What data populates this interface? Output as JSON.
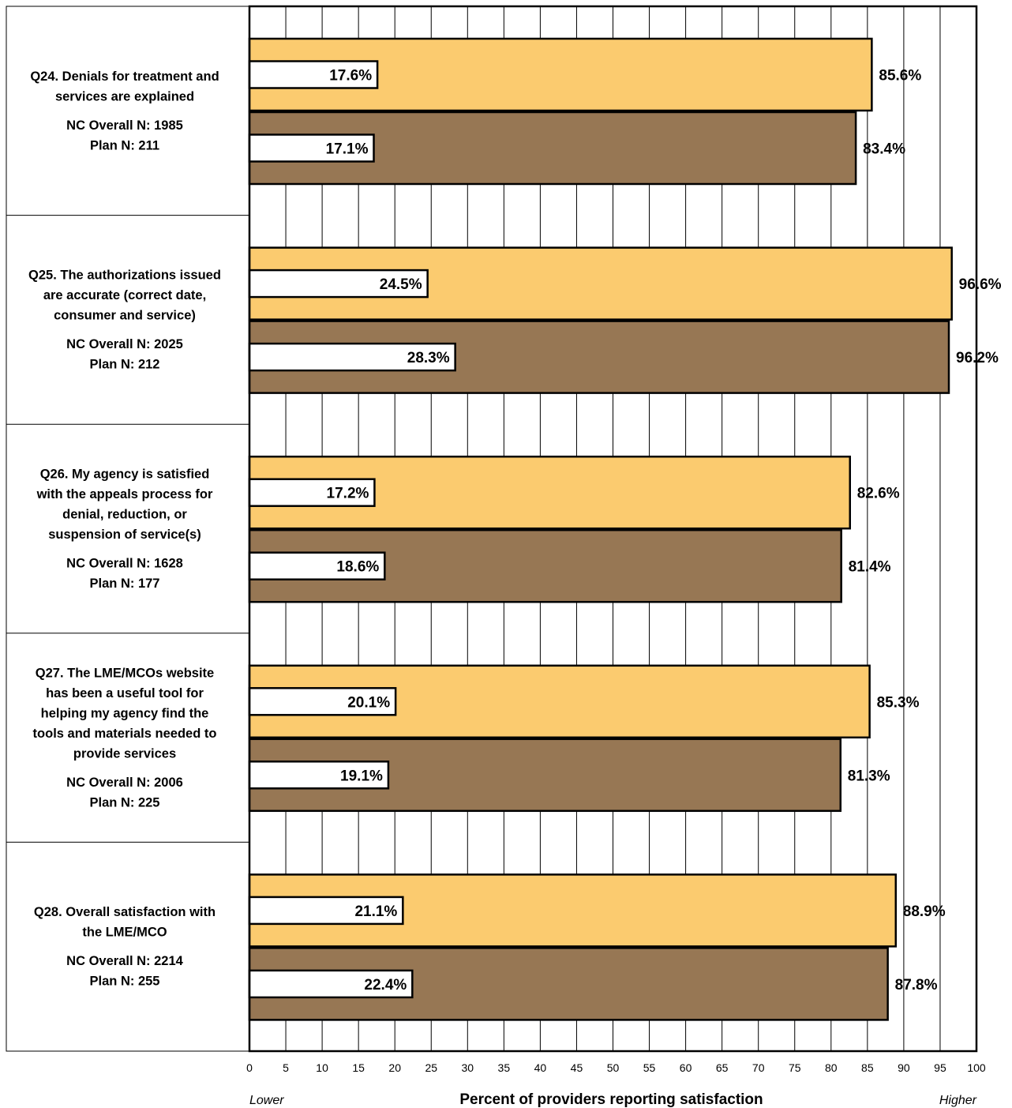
{
  "colors": {
    "plan": "#fbcb6f",
    "overall": "#977754",
    "inner": "#ffffff",
    "grid": "#000000"
  },
  "chart_data": {
    "type": "bar",
    "orientation": "horizontal",
    "xlabel": "Percent of providers reporting satisfaction",
    "x_low_label": "Lower",
    "x_high_label": "Higher",
    "xlim": [
      0,
      100
    ],
    "x_ticks": [
      "0",
      "5",
      "10",
      "15",
      "20",
      "25",
      "30",
      "35",
      "40",
      "45",
      "50",
      "55",
      "60",
      "65",
      "70",
      "75",
      "80",
      "85",
      "90",
      "95",
      "100"
    ],
    "grid": true,
    "categories": [
      {
        "lines": [
          "Q24. Denials for treatment and",
          "services are explained"
        ],
        "n_lines": [
          "NC Overall N: 1985",
          "Plan N: 211"
        ],
        "bars": [
          {
            "value": 85.6,
            "value_label": "85.6%",
            "inner": 17.6,
            "inner_label": "17.6%"
          },
          {
            "value": 83.4,
            "value_label": "83.4%",
            "inner": 17.1,
            "inner_label": "17.1%"
          }
        ]
      },
      {
        "lines": [
          "Q25. The authorizations issued",
          "are accurate (correct date,",
          "consumer and service)"
        ],
        "n_lines": [
          "NC Overall N: 2025",
          "Plan N: 212"
        ],
        "bars": [
          {
            "value": 96.6,
            "value_label": "96.6%",
            "inner": 24.5,
            "inner_label": "24.5%"
          },
          {
            "value": 96.2,
            "value_label": "96.2%",
            "inner": 28.3,
            "inner_label": "28.3%"
          }
        ]
      },
      {
        "lines": [
          "Q26. My agency is satisfied",
          "with the appeals process for",
          "denial, reduction, or",
          "suspension of service(s)"
        ],
        "n_lines": [
          "NC Overall N: 1628",
          "Plan N: 177"
        ],
        "bars": [
          {
            "value": 82.6,
            "value_label": "82.6%",
            "inner": 17.2,
            "inner_label": "17.2%"
          },
          {
            "value": 81.4,
            "value_label": "81.4%",
            "inner": 18.6,
            "inner_label": "18.6%"
          }
        ]
      },
      {
        "lines": [
          "Q27. The LME/MCOs website",
          "has been a useful tool for",
          "helping my agency find the",
          "tools and materials needed to",
          "provide services"
        ],
        "n_lines": [
          "NC Overall N: 2006",
          "Plan N: 225"
        ],
        "bars": [
          {
            "value": 85.3,
            "value_label": "85.3%",
            "inner": 20.1,
            "inner_label": "20.1%"
          },
          {
            "value": 81.3,
            "value_label": "81.3%",
            "inner": 19.1,
            "inner_label": "19.1%"
          }
        ]
      },
      {
        "lines": [
          "Q28. Overall satisfaction with",
          "the LME/MCO"
        ],
        "n_lines": [
          "NC Overall N: 2214",
          "Plan N: 255"
        ],
        "bars": [
          {
            "value": 88.9,
            "value_label": "88.9%",
            "inner": 21.1,
            "inner_label": "21.1%"
          },
          {
            "value": 87.8,
            "value_label": "87.8%",
            "inner": 22.4,
            "inner_label": "22.4%"
          }
        ]
      }
    ]
  }
}
